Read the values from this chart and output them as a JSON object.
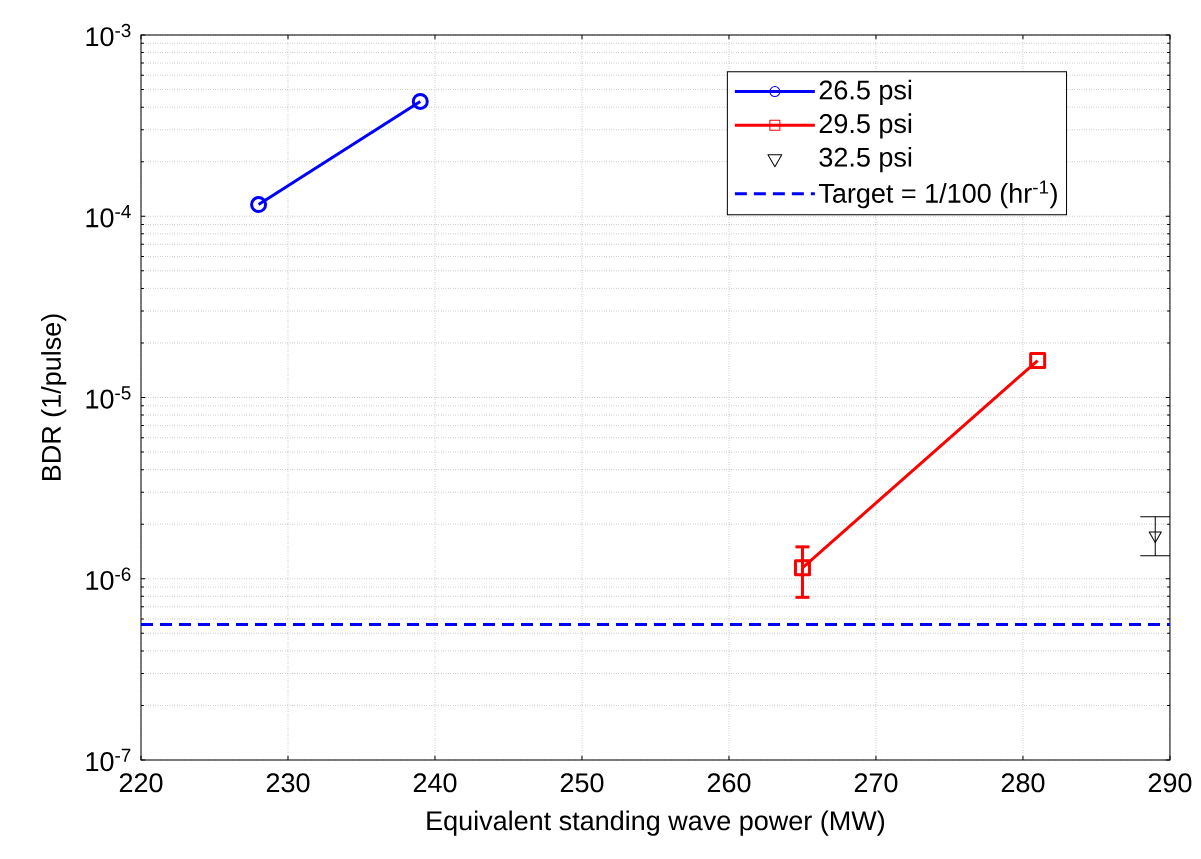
{
  "chart_data": {
    "type": "line",
    "xlabel": "Equivalent standing wave power (MW)",
    "ylabel": "BDR (1/pulse)",
    "log": "y",
    "grid": true,
    "legend": "top right",
    "xlim": [
      220,
      290
    ],
    "xticks": [
      220,
      230,
      240,
      250,
      260,
      270,
      280,
      290
    ],
    "ylim": [
      1e-07,
      0.001
    ],
    "yticks": [
      {
        "value": 1e-07,
        "label": "10$^{-7}$"
      },
      {
        "value": 1e-06,
        "label": "10$^{-6}$"
      },
      {
        "value": 1e-05,
        "label": "10$^{-5}$"
      },
      {
        "value": 0.0001,
        "label": "10$^{-4}$"
      },
      {
        "value": 0.001,
        "label": "10$^{-3}$"
      }
    ],
    "series": [
      {
        "name": "26.5 psi",
        "type": "line",
        "color": "#0000ff",
        "marker": "circle",
        "line_style": "solid",
        "x": [
          228,
          239
        ],
        "values": [
          0.000116,
          0.00043
        ]
      },
      {
        "name": "29.5 psi",
        "type": "line",
        "color": "#ff0000",
        "marker": "square",
        "line_style": "solid",
        "x": [
          265,
          281
        ],
        "values": [
          1.15e-06,
          1.6e-05
        ],
        "errors": [
          [
            7.9e-07,
            1.5e-06
          ],
          null
        ]
      },
      {
        "name": "32.5 psi",
        "type": "scatter",
        "color": "#000000",
        "marker": "triangle",
        "x": [
          289
        ],
        "values": [
          1.73e-06
        ],
        "errors": [
          [
            1.34e-06,
            2.2e-06
          ]
        ]
      }
    ],
    "ref_lines": [
      {
        "axis": "y",
        "value": 5.6e-07,
        "label": "Target = 1/100 (hr$^{-1}$)",
        "color": "#0000ff",
        "line_style": "dashed"
      }
    ]
  }
}
